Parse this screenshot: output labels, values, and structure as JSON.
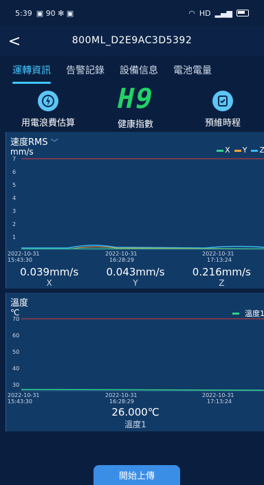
{
  "status_bar": {
    "time": "5:39",
    "left_icons": "90",
    "right_text": "HD"
  },
  "header": {
    "back_label": "<",
    "device_title": "800ML_D2E9AC3D5392"
  },
  "tabs": [
    {
      "label": "運轉資訊",
      "active": true
    },
    {
      "label": "告警記錄",
      "active": false
    },
    {
      "label": "設備信息",
      "active": false
    },
    {
      "label": "電池電量",
      "active": false
    }
  ],
  "kpis": {
    "left_label": "用電浪費估算",
    "center_value": "H9",
    "center_label": "健康指數",
    "right_label": "預維時程"
  },
  "velocity_panel": {
    "title": "速度RMS",
    "unit": "mm/s",
    "legend": [
      "X",
      "Y",
      "Z"
    ],
    "y_ticks": [
      "7",
      "6",
      "5",
      "4",
      "3",
      "2",
      "1"
    ],
    "x_labels": [
      {
        "date": "2022-10-31",
        "time": "15:43:30"
      },
      {
        "date": "2022-10-31",
        "time": "16:28:29"
      },
      {
        "date": "2022-10-31",
        "time": "17:13:24"
      }
    ],
    "readings": [
      {
        "value": "0.039mm/s",
        "axis": "X"
      },
      {
        "value": "0.043mm/s",
        "axis": "Y"
      },
      {
        "value": "0.216mm/s",
        "axis": "Z"
      }
    ]
  },
  "temp_panel": {
    "title": "溫度",
    "unit": "℃",
    "legend": "溫度1",
    "y_ticks": [
      "70",
      "60",
      "50",
      "40",
      "30"
    ],
    "x_labels": [
      {
        "date": "2022-10-31",
        "time": "15:43:30"
      },
      {
        "date": "2022-10-31",
        "time": "16:28:29"
      },
      {
        "date": "2022-10-31",
        "time": "17:13:24"
      }
    ],
    "reading_value": "26.000℃",
    "reading_label": "溫度1"
  },
  "upload_button": "開始上傳",
  "colors": {
    "accent": "#42c6ff",
    "health": "#23d167",
    "series_x": "#2fd38a",
    "series_y": "#f2a33a",
    "series_z": "#3ab8f0",
    "limit": "#d83a3a"
  }
}
